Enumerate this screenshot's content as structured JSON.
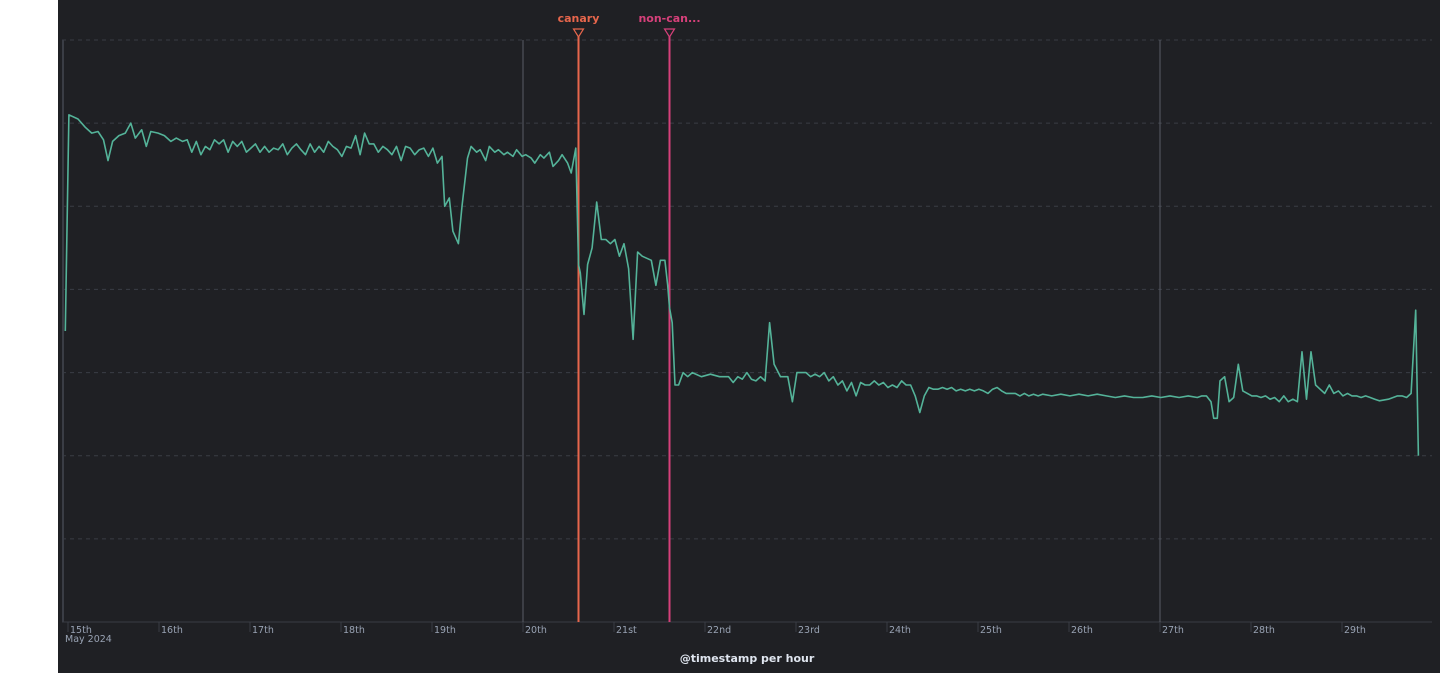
{
  "chart_data": {
    "type": "line",
    "xlabel": "@timestamp per hour",
    "ylabel": "",
    "title": "",
    "grid": true,
    "y_tick_labels_visible": false,
    "x_ticks": [
      {
        "day": 15,
        "label": "15th",
        "sublabel": "May 2024"
      },
      {
        "day": 16,
        "label": "16th"
      },
      {
        "day": 17,
        "label": "17th"
      },
      {
        "day": 18,
        "label": "18th"
      },
      {
        "day": 19,
        "label": "19th"
      },
      {
        "day": 20,
        "label": "20th"
      },
      {
        "day": 21,
        "label": "21st"
      },
      {
        "day": 22,
        "label": "22nd"
      },
      {
        "day": 23,
        "label": "23rd"
      },
      {
        "day": 24,
        "label": "24th"
      },
      {
        "day": 25,
        "label": "25th"
      },
      {
        "day": 26,
        "label": "26th"
      },
      {
        "day": 27,
        "label": "27th"
      },
      {
        "day": 28,
        "label": "28th"
      },
      {
        "day": 29,
        "label": "29th"
      }
    ],
    "week_markers": [
      20,
      27
    ],
    "annotations": [
      {
        "label": "canary",
        "day": 20.5,
        "color": "#e7664c"
      },
      {
        "label": "non-can...",
        "day": 21.5,
        "color": "#d6407a"
      }
    ],
    "series": [
      {
        "color": "#54b399",
        "points": [
          [
            14.86,
            3.5
          ],
          [
            14.9,
            6.1
          ],
          [
            15,
            6.05
          ],
          [
            15.08,
            5.95
          ],
          [
            15.15,
            5.88
          ],
          [
            15.22,
            5.9
          ],
          [
            15.28,
            5.8
          ],
          [
            15.33,
            5.55
          ],
          [
            15.38,
            5.78
          ],
          [
            15.45,
            5.85
          ],
          [
            15.52,
            5.88
          ],
          [
            15.58,
            6.0
          ],
          [
            15.63,
            5.82
          ],
          [
            15.7,
            5.92
          ],
          [
            15.75,
            5.72
          ],
          [
            15.8,
            5.9
          ],
          [
            15.88,
            5.88
          ],
          [
            15.95,
            5.85
          ],
          [
            16.02,
            5.78
          ],
          [
            16.08,
            5.82
          ],
          [
            16.15,
            5.78
          ],
          [
            16.2,
            5.8
          ],
          [
            16.25,
            5.65
          ],
          [
            16.3,
            5.78
          ],
          [
            16.35,
            5.62
          ],
          [
            16.4,
            5.72
          ],
          [
            16.45,
            5.68
          ],
          [
            16.5,
            5.8
          ],
          [
            16.55,
            5.75
          ],
          [
            16.6,
            5.8
          ],
          [
            16.65,
            5.65
          ],
          [
            16.7,
            5.78
          ],
          [
            16.75,
            5.72
          ],
          [
            16.8,
            5.78
          ],
          [
            16.85,
            5.65
          ],
          [
            16.9,
            5.7
          ],
          [
            16.95,
            5.75
          ],
          [
            17.0,
            5.65
          ],
          [
            17.05,
            5.72
          ],
          [
            17.1,
            5.65
          ],
          [
            17.15,
            5.7
          ],
          [
            17.2,
            5.68
          ],
          [
            17.25,
            5.75
          ],
          [
            17.3,
            5.62
          ],
          [
            17.35,
            5.7
          ],
          [
            17.4,
            5.75
          ],
          [
            17.45,
            5.68
          ],
          [
            17.5,
            5.62
          ],
          [
            17.55,
            5.75
          ],
          [
            17.6,
            5.65
          ],
          [
            17.65,
            5.72
          ],
          [
            17.7,
            5.65
          ],
          [
            17.75,
            5.78
          ],
          [
            17.8,
            5.72
          ],
          [
            17.85,
            5.68
          ],
          [
            17.9,
            5.6
          ],
          [
            17.95,
            5.72
          ],
          [
            18.0,
            5.7
          ],
          [
            18.05,
            5.85
          ],
          [
            18.1,
            5.62
          ],
          [
            18.15,
            5.88
          ],
          [
            18.2,
            5.75
          ],
          [
            18.25,
            5.75
          ],
          [
            18.3,
            5.65
          ],
          [
            18.35,
            5.72
          ],
          [
            18.4,
            5.68
          ],
          [
            18.45,
            5.62
          ],
          [
            18.5,
            5.72
          ],
          [
            18.55,
            5.55
          ],
          [
            18.6,
            5.72
          ],
          [
            18.65,
            5.7
          ],
          [
            18.7,
            5.62
          ],
          [
            18.75,
            5.68
          ],
          [
            18.8,
            5.7
          ],
          [
            18.85,
            5.6
          ],
          [
            18.9,
            5.7
          ],
          [
            18.95,
            5.52
          ],
          [
            19.0,
            5.6
          ],
          [
            19.03,
            5.0
          ],
          [
            19.08,
            5.1
          ],
          [
            19.12,
            4.7
          ],
          [
            19.18,
            4.55
          ],
          [
            19.22,
            5.0
          ],
          [
            19.28,
            5.58
          ],
          [
            19.32,
            5.72
          ],
          [
            19.38,
            5.65
          ],
          [
            19.42,
            5.68
          ],
          [
            19.48,
            5.55
          ],
          [
            19.52,
            5.72
          ],
          [
            19.58,
            5.65
          ],
          [
            19.62,
            5.68
          ],
          [
            19.68,
            5.62
          ],
          [
            19.72,
            5.65
          ],
          [
            19.78,
            5.6
          ],
          [
            19.82,
            5.68
          ],
          [
            19.88,
            5.6
          ],
          [
            19.92,
            5.62
          ],
          [
            19.98,
            5.58
          ],
          [
            20.02,
            5.52
          ],
          [
            20.08,
            5.62
          ],
          [
            20.12,
            5.58
          ],
          [
            20.18,
            5.65
          ],
          [
            20.22,
            5.48
          ],
          [
            20.28,
            5.55
          ],
          [
            20.32,
            5.62
          ],
          [
            20.38,
            5.52
          ],
          [
            20.42,
            5.4
          ],
          [
            20.47,
            5.7
          ],
          [
            20.5,
            4.3
          ],
          [
            20.52,
            4.2
          ],
          [
            20.56,
            3.7
          ],
          [
            20.6,
            4.3
          ],
          [
            20.65,
            4.5
          ],
          [
            20.7,
            5.05
          ],
          [
            20.75,
            4.6
          ],
          [
            20.8,
            4.6
          ],
          [
            20.85,
            4.55
          ],
          [
            20.9,
            4.6
          ],
          [
            20.95,
            4.4
          ],
          [
            21.0,
            4.55
          ],
          [
            21.05,
            4.25
          ],
          [
            21.1,
            3.4
          ],
          [
            21.15,
            4.45
          ],
          [
            21.2,
            4.4
          ],
          [
            21.3,
            4.35
          ],
          [
            21.35,
            4.05
          ],
          [
            21.4,
            4.35
          ],
          [
            21.45,
            4.35
          ],
          [
            21.48,
            4.05
          ],
          [
            21.5,
            3.78
          ],
          [
            21.53,
            3.6
          ],
          [
            21.56,
            2.85
          ],
          [
            21.6,
            2.85
          ],
          [
            21.65,
            3.0
          ],
          [
            21.7,
            2.95
          ],
          [
            21.75,
            3.0
          ],
          [
            21.85,
            2.95
          ],
          [
            21.95,
            2.98
          ],
          [
            22.05,
            2.95
          ],
          [
            22.15,
            2.95
          ],
          [
            22.2,
            2.88
          ],
          [
            22.25,
            2.95
          ],
          [
            22.3,
            2.92
          ],
          [
            22.35,
            3.0
          ],
          [
            22.4,
            2.92
          ],
          [
            22.45,
            2.9
          ],
          [
            22.5,
            2.95
          ],
          [
            22.55,
            2.9
          ],
          [
            22.6,
            3.6
          ],
          [
            22.65,
            3.1
          ],
          [
            22.72,
            2.95
          ],
          [
            22.8,
            2.95
          ],
          [
            22.85,
            2.65
          ],
          [
            22.9,
            3.0
          ],
          [
            22.95,
            3.0
          ],
          [
            23.0,
            3.0
          ],
          [
            23.05,
            2.95
          ],
          [
            23.1,
            2.98
          ],
          [
            23.15,
            2.95
          ],
          [
            23.2,
            3.0
          ],
          [
            23.25,
            2.9
          ],
          [
            23.3,
            2.95
          ],
          [
            23.35,
            2.85
          ],
          [
            23.4,
            2.9
          ],
          [
            23.45,
            2.78
          ],
          [
            23.5,
            2.88
          ],
          [
            23.55,
            2.72
          ],
          [
            23.6,
            2.88
          ],
          [
            23.65,
            2.85
          ],
          [
            23.7,
            2.85
          ],
          [
            23.75,
            2.9
          ],
          [
            23.8,
            2.85
          ],
          [
            23.85,
            2.88
          ],
          [
            23.9,
            2.82
          ],
          [
            23.95,
            2.85
          ],
          [
            24.0,
            2.82
          ],
          [
            24.05,
            2.9
          ],
          [
            24.1,
            2.85
          ],
          [
            24.15,
            2.85
          ],
          [
            24.2,
            2.72
          ],
          [
            24.25,
            2.52
          ],
          [
            24.3,
            2.72
          ],
          [
            24.35,
            2.82
          ],
          [
            24.4,
            2.8
          ],
          [
            24.45,
            2.8
          ],
          [
            24.5,
            2.82
          ],
          [
            24.55,
            2.8
          ],
          [
            24.6,
            2.82
          ],
          [
            24.65,
            2.78
          ],
          [
            24.7,
            2.8
          ],
          [
            24.75,
            2.78
          ],
          [
            24.8,
            2.8
          ],
          [
            24.85,
            2.78
          ],
          [
            24.9,
            2.8
          ],
          [
            24.95,
            2.78
          ],
          [
            25.0,
            2.75
          ],
          [
            25.05,
            2.8
          ],
          [
            25.1,
            2.82
          ],
          [
            25.15,
            2.78
          ],
          [
            25.2,
            2.75
          ],
          [
            25.3,
            2.75
          ],
          [
            25.35,
            2.72
          ],
          [
            25.4,
            2.75
          ],
          [
            25.45,
            2.72
          ],
          [
            25.5,
            2.74
          ],
          [
            25.55,
            2.72
          ],
          [
            25.6,
            2.74
          ],
          [
            25.7,
            2.72
          ],
          [
            25.8,
            2.74
          ],
          [
            25.9,
            2.72
          ],
          [
            26.0,
            2.74
          ],
          [
            26.1,
            2.72
          ],
          [
            26.2,
            2.74
          ],
          [
            26.3,
            2.72
          ],
          [
            26.4,
            2.7
          ],
          [
            26.5,
            2.72
          ],
          [
            26.6,
            2.7
          ],
          [
            26.7,
            2.7
          ],
          [
            26.8,
            2.72
          ],
          [
            26.9,
            2.7
          ],
          [
            27.0,
            2.72
          ],
          [
            27.1,
            2.7
          ],
          [
            27.2,
            2.72
          ],
          [
            27.3,
            2.7
          ],
          [
            27.35,
            2.72
          ],
          [
            27.4,
            2.72
          ],
          [
            27.45,
            2.65
          ],
          [
            27.48,
            2.45
          ],
          [
            27.52,
            2.45
          ],
          [
            27.55,
            2.9
          ],
          [
            27.6,
            2.95
          ],
          [
            27.65,
            2.65
          ],
          [
            27.7,
            2.7
          ],
          [
            27.75,
            3.1
          ],
          [
            27.8,
            2.78
          ],
          [
            27.85,
            2.75
          ],
          [
            27.9,
            2.72
          ],
          [
            27.95,
            2.72
          ],
          [
            28.0,
            2.7
          ],
          [
            28.05,
            2.72
          ],
          [
            28.1,
            2.68
          ],
          [
            28.15,
            2.7
          ],
          [
            28.2,
            2.65
          ],
          [
            28.25,
            2.72
          ],
          [
            28.3,
            2.65
          ],
          [
            28.35,
            2.68
          ],
          [
            28.4,
            2.65
          ],
          [
            28.45,
            3.25
          ],
          [
            28.5,
            2.68
          ],
          [
            28.55,
            3.25
          ],
          [
            28.6,
            2.85
          ],
          [
            28.65,
            2.8
          ],
          [
            28.7,
            2.75
          ],
          [
            28.75,
            2.85
          ],
          [
            28.8,
            2.75
          ],
          [
            28.85,
            2.78
          ],
          [
            28.9,
            2.72
          ],
          [
            28.95,
            2.75
          ],
          [
            29.0,
            2.72
          ],
          [
            29.05,
            2.72
          ],
          [
            29.1,
            2.7
          ],
          [
            29.15,
            2.72
          ],
          [
            29.2,
            2.7
          ],
          [
            29.25,
            2.68
          ],
          [
            29.3,
            2.66
          ],
          [
            29.4,
            2.68
          ],
          [
            29.5,
            2.72
          ],
          [
            29.55,
            2.72
          ],
          [
            29.6,
            2.7
          ],
          [
            29.65,
            2.75
          ],
          [
            29.7,
            3.75
          ],
          [
            29.73,
            2.0
          ]
        ]
      }
    ]
  }
}
